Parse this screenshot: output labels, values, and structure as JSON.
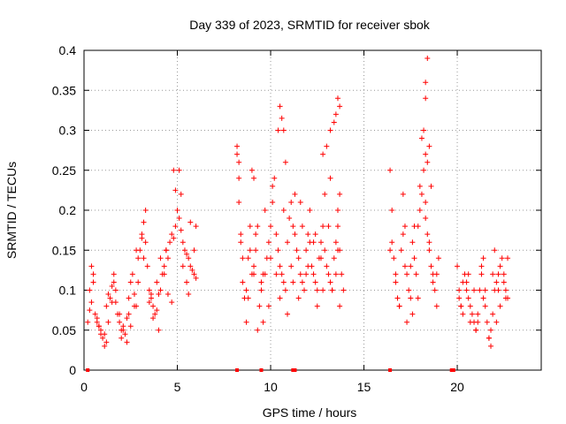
{
  "chart_data": {
    "type": "scatter",
    "title": "Day 339 of 2023, SRMTID for receiver sbok",
    "xlabel": "GPS time / hours",
    "ylabel": "SRMTID / TECUs",
    "xlim": [
      0,
      24.5
    ],
    "ylim": [
      0,
      0.4
    ],
    "xticks": [
      0,
      5,
      10,
      15,
      20
    ],
    "xtick_labels": [
      "0",
      "5",
      "10",
      "15",
      "20"
    ],
    "yticks": [
      0,
      0.05,
      0.1,
      0.15,
      0.2,
      0.25,
      0.3,
      0.35,
      0.4
    ],
    "ytick_labels": [
      "0",
      "0.05",
      "0.1",
      "0.15",
      "0.2",
      "0.25",
      "0.3",
      "0.35",
      "0.4"
    ],
    "grid": true,
    "marker": "plus",
    "color": "#ff0000",
    "series": [
      {
        "name": "SRMTID",
        "x": [
          0.2,
          0.3,
          0.4,
          0.5,
          0.6,
          0.7,
          0.8,
          0.9,
          1.0,
          1.1,
          1.2,
          1.3,
          1.4,
          1.5,
          1.6,
          1.7,
          1.8,
          1.9,
          2.0,
          2.1,
          2.2,
          2.3,
          2.4,
          2.5,
          2.6,
          2.7,
          2.8,
          2.9,
          3.0,
          3.1,
          3.2,
          3.3,
          3.4,
          3.5,
          3.6,
          3.7,
          3.8,
          3.9,
          4.0,
          4.1,
          4.2,
          4.3,
          4.4,
          4.5,
          4.6,
          4.7,
          4.8,
          4.9,
          5.0,
          5.1,
          5.2,
          5.3,
          5.4,
          5.5,
          5.6,
          5.7,
          5.8,
          5.9,
          6.0,
          0.3,
          0.5,
          0.7,
          0.9,
          1.1,
          1.3,
          1.5,
          1.7,
          1.9,
          2.1,
          2.3,
          2.5,
          2.7,
          2.9,
          3.1,
          3.3,
          3.5,
          3.7,
          3.9,
          4.1,
          4.3,
          4.5,
          4.7,
          4.9,
          5.1,
          5.3,
          5.5,
          5.7,
          5.9,
          0.4,
          0.8,
          1.2,
          1.6,
          2.0,
          2.4,
          2.8,
          3.2,
          3.6,
          4.0,
          4.4,
          4.8,
          5.2,
          5.6,
          6.0,
          8.2,
          8.3,
          8.4,
          8.5,
          8.6,
          8.7,
          8.8,
          8.9,
          9.0,
          9.1,
          9.2,
          9.3,
          9.4,
          9.5,
          9.6,
          9.7,
          9.8,
          9.9,
          10.0,
          10.1,
          10.2,
          10.3,
          10.4,
          10.5,
          10.6,
          10.7,
          10.8,
          10.9,
          11.0,
          11.1,
          11.2,
          11.3,
          11.4,
          11.5,
          11.6,
          11.7,
          11.8,
          11.9,
          12.0,
          12.1,
          12.2,
          12.3,
          12.4,
          12.5,
          12.6,
          12.7,
          12.8,
          12.9,
          13.0,
          13.1,
          13.2,
          13.3,
          13.4,
          13.5,
          13.6,
          13.7,
          13.8,
          13.9,
          8.3,
          8.5,
          8.7,
          8.9,
          9.1,
          9.3,
          9.5,
          9.7,
          9.9,
          10.1,
          10.3,
          10.5,
          10.7,
          10.9,
          11.1,
          11.3,
          11.5,
          11.7,
          11.9,
          12.1,
          12.3,
          12.5,
          12.7,
          12.9,
          13.1,
          13.3,
          13.5,
          13.7,
          8.4,
          8.8,
          9.2,
          9.6,
          10.0,
          10.4,
          10.8,
          11.2,
          11.6,
          12.0,
          12.4,
          12.8,
          13.2,
          13.6,
          8.2,
          8.3,
          9.0,
          9.1,
          10.5,
          10.6,
          10.7,
          12.8,
          13.0,
          13.2,
          13.4,
          13.5,
          13.6,
          13.7,
          13.7,
          13.6,
          16.4,
          16.5,
          16.6,
          16.7,
          16.8,
          16.9,
          17.0,
          17.1,
          17.2,
          17.3,
          17.4,
          17.5,
          17.6,
          17.7,
          17.8,
          17.9,
          18.0,
          18.1,
          18.2,
          18.3,
          18.4,
          18.5,
          18.6,
          18.7,
          18.8,
          18.9,
          19.0,
          16.5,
          16.7,
          16.9,
          17.1,
          17.3,
          17.5,
          17.7,
          17.9,
          18.1,
          18.3,
          18.5,
          18.7,
          18.9,
          16.4,
          16.8,
          17.2,
          17.6,
          18.0,
          18.2,
          18.3,
          18.3,
          18.4,
          18.5,
          18.4,
          18.6,
          18.3,
          20.0,
          20.1,
          20.2,
          20.3,
          20.4,
          20.5,
          20.6,
          20.7,
          20.8,
          20.9,
          21.0,
          21.1,
          21.2,
          21.3,
          21.4,
          21.5,
          21.6,
          21.7,
          21.8,
          21.9,
          22.0,
          22.1,
          22.2,
          22.3,
          22.4,
          22.5,
          22.6,
          22.7,
          20.1,
          20.3,
          20.5,
          20.7,
          20.9,
          21.1,
          21.3,
          21.5,
          21.7,
          21.9,
          22.1,
          22.3,
          22.5,
          22.7,
          20.2,
          20.6,
          21.0,
          21.4,
          21.8,
          22.0,
          22.2,
          22.6
        ],
        "y": [
          0.06,
          0.1,
          0.085,
          0.12,
          0.07,
          0.065,
          0.055,
          0.05,
          0.04,
          0.045,
          0.08,
          0.095,
          0.09,
          0.105,
          0.11,
          0.085,
          0.07,
          0.06,
          0.05,
          0.055,
          0.045,
          0.065,
          0.09,
          0.11,
          0.12,
          0.095,
          0.08,
          0.14,
          0.15,
          0.17,
          0.185,
          0.16,
          0.13,
          0.1,
          0.09,
          0.08,
          0.07,
          0.075,
          0.095,
          0.1,
          0.12,
          0.13,
          0.15,
          0.14,
          0.16,
          0.17,
          0.165,
          0.18,
          0.2,
          0.19,
          0.175,
          0.16,
          0.15,
          0.145,
          0.14,
          0.13,
          0.125,
          0.12,
          0.115,
          0.075,
          0.11,
          0.06,
          0.045,
          0.03,
          0.06,
          0.085,
          0.1,
          0.07,
          0.05,
          0.035,
          0.055,
          0.08,
          0.11,
          0.165,
          0.2,
          0.085,
          0.065,
          0.11,
          0.14,
          0.12,
          0.095,
          0.085,
          0.225,
          0.25,
          0.13,
          0.11,
          0.185,
          0.15,
          0.13,
          0.055,
          0.035,
          0.12,
          0.04,
          0.07,
          0.15,
          0.14,
          0.095,
          0.05,
          0.15,
          0.25,
          0.22,
          0.095,
          0.18,
          0.28,
          0.21,
          0.16,
          0.11,
          0.09,
          0.06,
          0.14,
          0.15,
          0.12,
          0.13,
          0.17,
          0.18,
          0.08,
          0.1,
          0.06,
          0.12,
          0.14,
          0.16,
          0.18,
          0.21,
          0.24,
          0.17,
          0.15,
          0.13,
          0.12,
          0.11,
          0.1,
          0.16,
          0.19,
          0.21,
          0.18,
          0.17,
          0.15,
          0.14,
          0.12,
          0.11,
          0.1,
          0.15,
          0.17,
          0.16,
          0.13,
          0.12,
          0.11,
          0.1,
          0.14,
          0.16,
          0.18,
          0.15,
          0.13,
          0.12,
          0.11,
          0.1,
          0.14,
          0.16,
          0.18,
          0.15,
          0.12,
          0.1,
          0.24,
          0.14,
          0.1,
          0.18,
          0.12,
          0.05,
          0.11,
          0.2,
          0.08,
          0.23,
          0.12,
          0.09,
          0.2,
          0.07,
          0.13,
          0.22,
          0.09,
          0.18,
          0.12,
          0.2,
          0.16,
          0.08,
          0.14,
          0.22,
          0.18,
          0.1,
          0.12,
          0.08,
          0.17,
          0.09,
          0.15,
          0.12,
          0.14,
          0.3,
          0.26,
          0.11,
          0.21,
          0.13,
          0.17,
          0.1,
          0.24,
          0.15,
          0.27,
          0.26,
          0.25,
          0.24,
          0.33,
          0.315,
          0.3,
          0.27,
          0.28,
          0.3,
          0.31,
          0.32,
          0.34,
          0.33,
          0.22,
          0.2,
          0.25,
          0.16,
          0.14,
          0.11,
          0.09,
          0.08,
          0.15,
          0.17,
          0.13,
          0.12,
          0.1,
          0.09,
          0.16,
          0.14,
          0.12,
          0.18,
          0.2,
          0.22,
          0.25,
          0.19,
          0.17,
          0.15,
          0.13,
          0.11,
          0.1,
          0.12,
          0.14,
          0.2,
          0.12,
          0.08,
          0.22,
          0.06,
          0.13,
          0.18,
          0.09,
          0.29,
          0.21,
          0.16,
          0.12,
          0.08,
          0.15,
          0.09,
          0.18,
          0.07,
          0.23,
          0.3,
          0.34,
          0.36,
          0.39,
          0.28,
          0.26,
          0.23,
          0.27,
          0.13,
          0.1,
          0.08,
          0.11,
          0.12,
          0.1,
          0.09,
          0.08,
          0.07,
          0.06,
          0.05,
          0.06,
          0.1,
          0.12,
          0.14,
          0.08,
          0.06,
          0.04,
          0.05,
          0.07,
          0.1,
          0.11,
          0.12,
          0.13,
          0.14,
          0.12,
          0.1,
          0.09,
          0.09,
          0.07,
          0.11,
          0.06,
          0.1,
          0.07,
          0.13,
          0.1,
          0.04,
          0.12,
          0.06,
          0.08,
          0.11,
          0.14,
          0.08,
          0.12,
          0.05,
          0.09,
          0.03,
          0.15,
          0.1,
          0.09
        ]
      }
    ],
    "baseline_markers_x": [
      0.2,
      8.2,
      9.5,
      11.2,
      11.3,
      16.4,
      19.7,
      19.8
    ]
  }
}
